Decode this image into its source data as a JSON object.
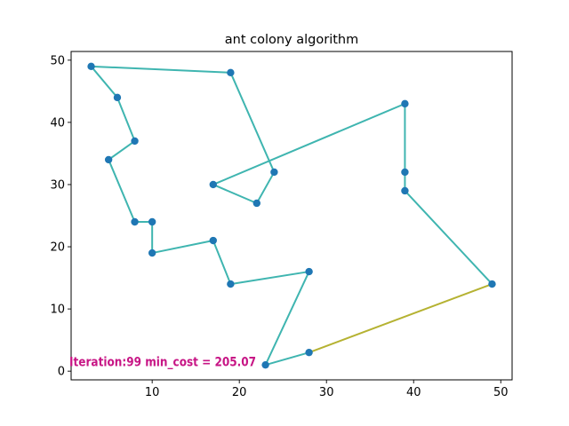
{
  "chart_data": {
    "type": "line",
    "title": "ant colony algorithm",
    "xlabel": "",
    "ylabel": "",
    "xlim": [
      0.7,
      51.3
    ],
    "ylim": [
      -1.4,
      51.4
    ],
    "xticks": [
      10,
      20,
      30,
      40,
      50
    ],
    "yticks": [
      0,
      10,
      20,
      30,
      40,
      50
    ],
    "grid": false,
    "points": [
      [
        3,
        49
      ],
      [
        19,
        48
      ],
      [
        24,
        32
      ],
      [
        22,
        27
      ],
      [
        17,
        30
      ],
      [
        39,
        43
      ],
      [
        39,
        32
      ],
      [
        39,
        29
      ],
      [
        49,
        14
      ],
      [
        28,
        3
      ],
      [
        23,
        1
      ],
      [
        28,
        16
      ],
      [
        19,
        14
      ],
      [
        17,
        21
      ],
      [
        10,
        19
      ],
      [
        10,
        24
      ],
      [
        8,
        24
      ],
      [
        5,
        34
      ],
      [
        8,
        37
      ],
      [
        6,
        44
      ],
      [
        3,
        49
      ]
    ],
    "highlight_segment": [
      [
        49,
        14
      ],
      [
        28,
        3
      ]
    ],
    "colors": {
      "route": "#3fb5b0",
      "highlight": "#b5b232",
      "marker": "#1f77b4",
      "annotation": "#c71585"
    },
    "annotation": {
      "text": "Iteration:99 min_cost = 205.07",
      "x": 0.5,
      "y": 0.5
    }
  }
}
